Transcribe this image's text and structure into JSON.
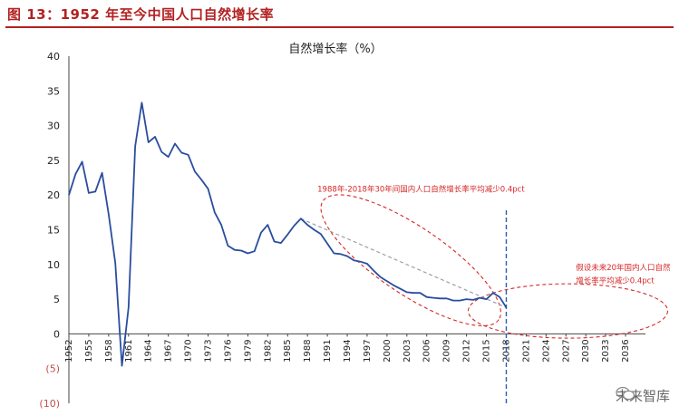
{
  "figure_title": "图 13：1952 年至今中国人口自然增长率",
  "watermark": "未来智库",
  "colors": {
    "title": "#b22222",
    "line": "#2a4d9e",
    "divider": "#2a5db0",
    "ellipse": "#d62728",
    "trend": "#9aa0aa"
  },
  "chart_data": {
    "type": "line",
    "title": "自然增长率（%）",
    "xlabel": "",
    "ylabel": "",
    "ylim": [
      -10,
      40
    ],
    "yticks": [
      "40",
      "35",
      "30",
      "25",
      "20",
      "15",
      "10",
      "5",
      "0",
      "(5)",
      "(10)"
    ],
    "ytick_values": [
      40,
      35,
      30,
      25,
      20,
      15,
      10,
      5,
      0,
      -5,
      -10
    ],
    "xlim": [
      1952,
      2039
    ],
    "xticks": [
      1952,
      1955,
      1958,
      1961,
      1964,
      1967,
      1970,
      1973,
      1976,
      1979,
      1982,
      1985,
      1988,
      1991,
      1994,
      1997,
      2000,
      2003,
      2006,
      2009,
      2012,
      2015,
      2018,
      2021,
      2024,
      2027,
      2030,
      2033,
      2036
    ],
    "grid": false,
    "divider_year": 2018,
    "series": [
      {
        "x": [
          1952,
          1953,
          1954,
          1955,
          1956,
          1957,
          1958,
          1959,
          1960,
          1961,
          1962,
          1963,
          1964,
          1965,
          1966,
          1967,
          1968,
          1969,
          1970,
          1971,
          1972,
          1973,
          1974,
          1975,
          1976,
          1977,
          1978,
          1979,
          1980,
          1981,
          1982,
          1983,
          1984,
          1985,
          1986,
          1987,
          1988,
          1989,
          1990,
          1991,
          1992,
          1993,
          1994,
          1995,
          1996,
          1997,
          1998,
          1999,
          2000,
          2001,
          2002,
          2003,
          2004,
          2005,
          2006,
          2007,
          2008,
          2009,
          2010,
          2011,
          2012,
          2013,
          2014,
          2015,
          2016,
          2017,
          2018
        ],
        "y": [
          20.0,
          23.0,
          24.8,
          20.3,
          20.5,
          23.2,
          17.2,
          10.2,
          -4.6,
          3.8,
          27.0,
          33.3,
          27.6,
          28.4,
          26.2,
          25.5,
          27.4,
          26.1,
          25.8,
          23.4,
          22.2,
          20.9,
          17.5,
          15.7,
          12.7,
          12.1,
          12.0,
          11.6,
          11.9,
          14.6,
          15.7,
          13.3,
          13.1,
          14.3,
          15.6,
          16.6,
          15.7,
          15.0,
          14.4,
          13.0,
          11.6,
          11.5,
          11.2,
          10.6,
          10.4,
          10.1,
          9.1,
          8.2,
          7.6,
          7.0,
          6.5,
          6.0,
          5.9,
          5.9,
          5.3,
          5.2,
          5.1,
          5.1,
          4.8,
          4.8,
          5.0,
          4.9,
          5.2,
          5.0,
          5.9,
          5.3,
          3.8
        ]
      }
    ],
    "trend_line": {
      "x": [
        1987,
        2018
      ],
      "y": [
        16.6,
        3.8
      ]
    },
    "annotations": [
      {
        "text": "1988年-2018年30年间国内人口自然增长率平均减少0.4pct",
        "x": 1989.5,
        "y": 20.5
      },
      {
        "text": "假设未来20年国内人口自然",
        "x": 2028.5,
        "y": 9.2
      },
      {
        "text": "增长率平均减少0.4pct",
        "x": 2028.5,
        "y": 7.3
      }
    ]
  }
}
